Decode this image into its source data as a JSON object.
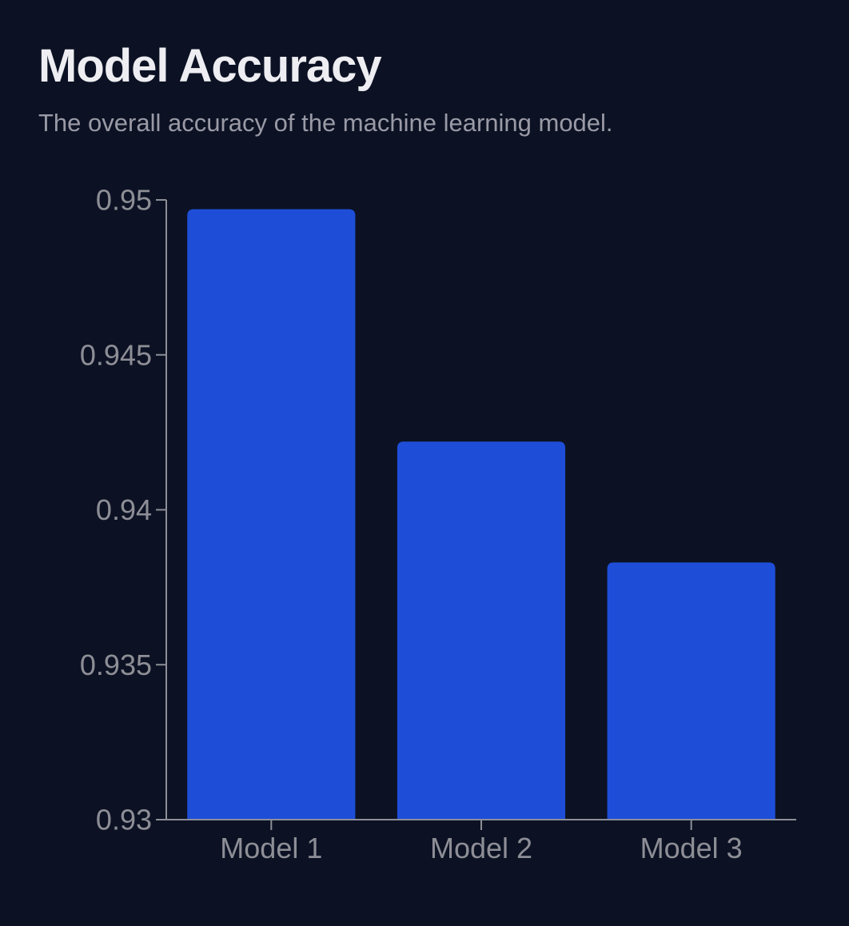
{
  "colors": {
    "background": "#0c1224",
    "bar": "#1e4ed8",
    "axis": "#8e8e96",
    "title": "#eeeef2",
    "subtitle": "#9a9aa6"
  },
  "chart_data": {
    "type": "bar",
    "title": "Model Accuracy",
    "subtitle": "The overall accuracy of the machine learning model.",
    "xlabel": "",
    "ylabel": "",
    "categories": [
      "Model 1",
      "Model 2",
      "Model 3"
    ],
    "values": [
      0.9497,
      0.9422,
      0.9383
    ],
    "ylim": [
      0.93,
      0.95
    ],
    "yticks": [
      "0.93",
      "0.935",
      "0.94",
      "0.945",
      "0.95"
    ],
    "grid": false,
    "legend": "none"
  }
}
